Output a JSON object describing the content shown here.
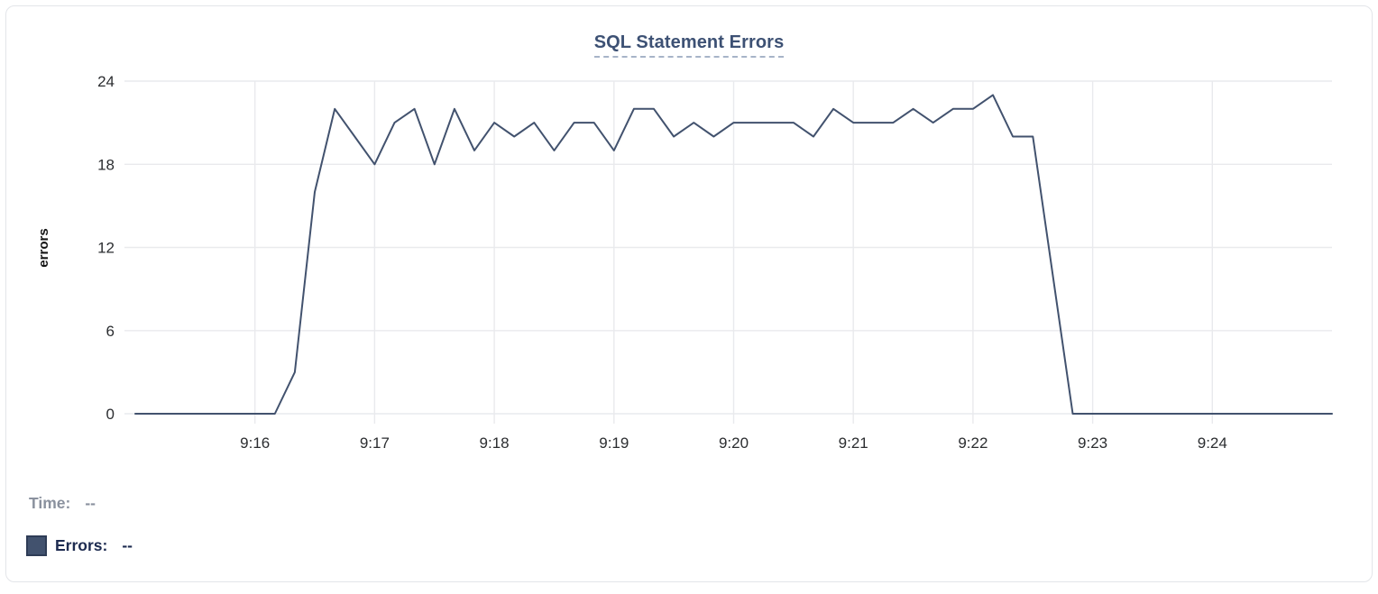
{
  "card": {
    "type": "timeseries-widget"
  },
  "chart_data": {
    "type": "line",
    "title": "SQL Statement Errors",
    "xlabel": "",
    "ylabel": "errors",
    "ylim": [
      0,
      24
    ],
    "y_ticks": [
      0,
      6,
      12,
      18,
      24
    ],
    "x_tick_labels": [
      "9:16",
      "9:17",
      "9:18",
      "9:19",
      "9:20",
      "9:21",
      "9:22",
      "9:23",
      "9:24"
    ],
    "x_range": [
      "9:15:00",
      "9:25:00"
    ],
    "sample_interval_seconds": 10,
    "grid": true,
    "legend_position": "bottom-left",
    "series": [
      {
        "name": "Errors",
        "color": "#42526e",
        "start_time": "9:15:00",
        "values": [
          0,
          0,
          0,
          0,
          0,
          0,
          0,
          0,
          3,
          16,
          22,
          20,
          18,
          21,
          22,
          18,
          22,
          19,
          21,
          20,
          21,
          19,
          21,
          21,
          19,
          22,
          22,
          20,
          21,
          20,
          21,
          21,
          21,
          21,
          20,
          22,
          21,
          21,
          21,
          22,
          21,
          22,
          22,
          23,
          20,
          20,
          10,
          0,
          0,
          0,
          0,
          0,
          0,
          0,
          0,
          0,
          0,
          0,
          0,
          0,
          0
        ]
      }
    ]
  },
  "tooltip": {
    "time_label": "Time:",
    "time_value": "--",
    "errors_label": "Errors:",
    "errors_value": "--"
  },
  "colors": {
    "series_navy": "#42526e",
    "title_navy": "#3d5174",
    "underline_slate": "#a7b4c8",
    "grid_gray": "#e9eaed",
    "muted_gray": "#8a919e",
    "legend_dark_navy": "#1d2b50",
    "swatch_border": "#2e3c56",
    "card_border": "#e3e5e9",
    "background": "#ffffff"
  }
}
